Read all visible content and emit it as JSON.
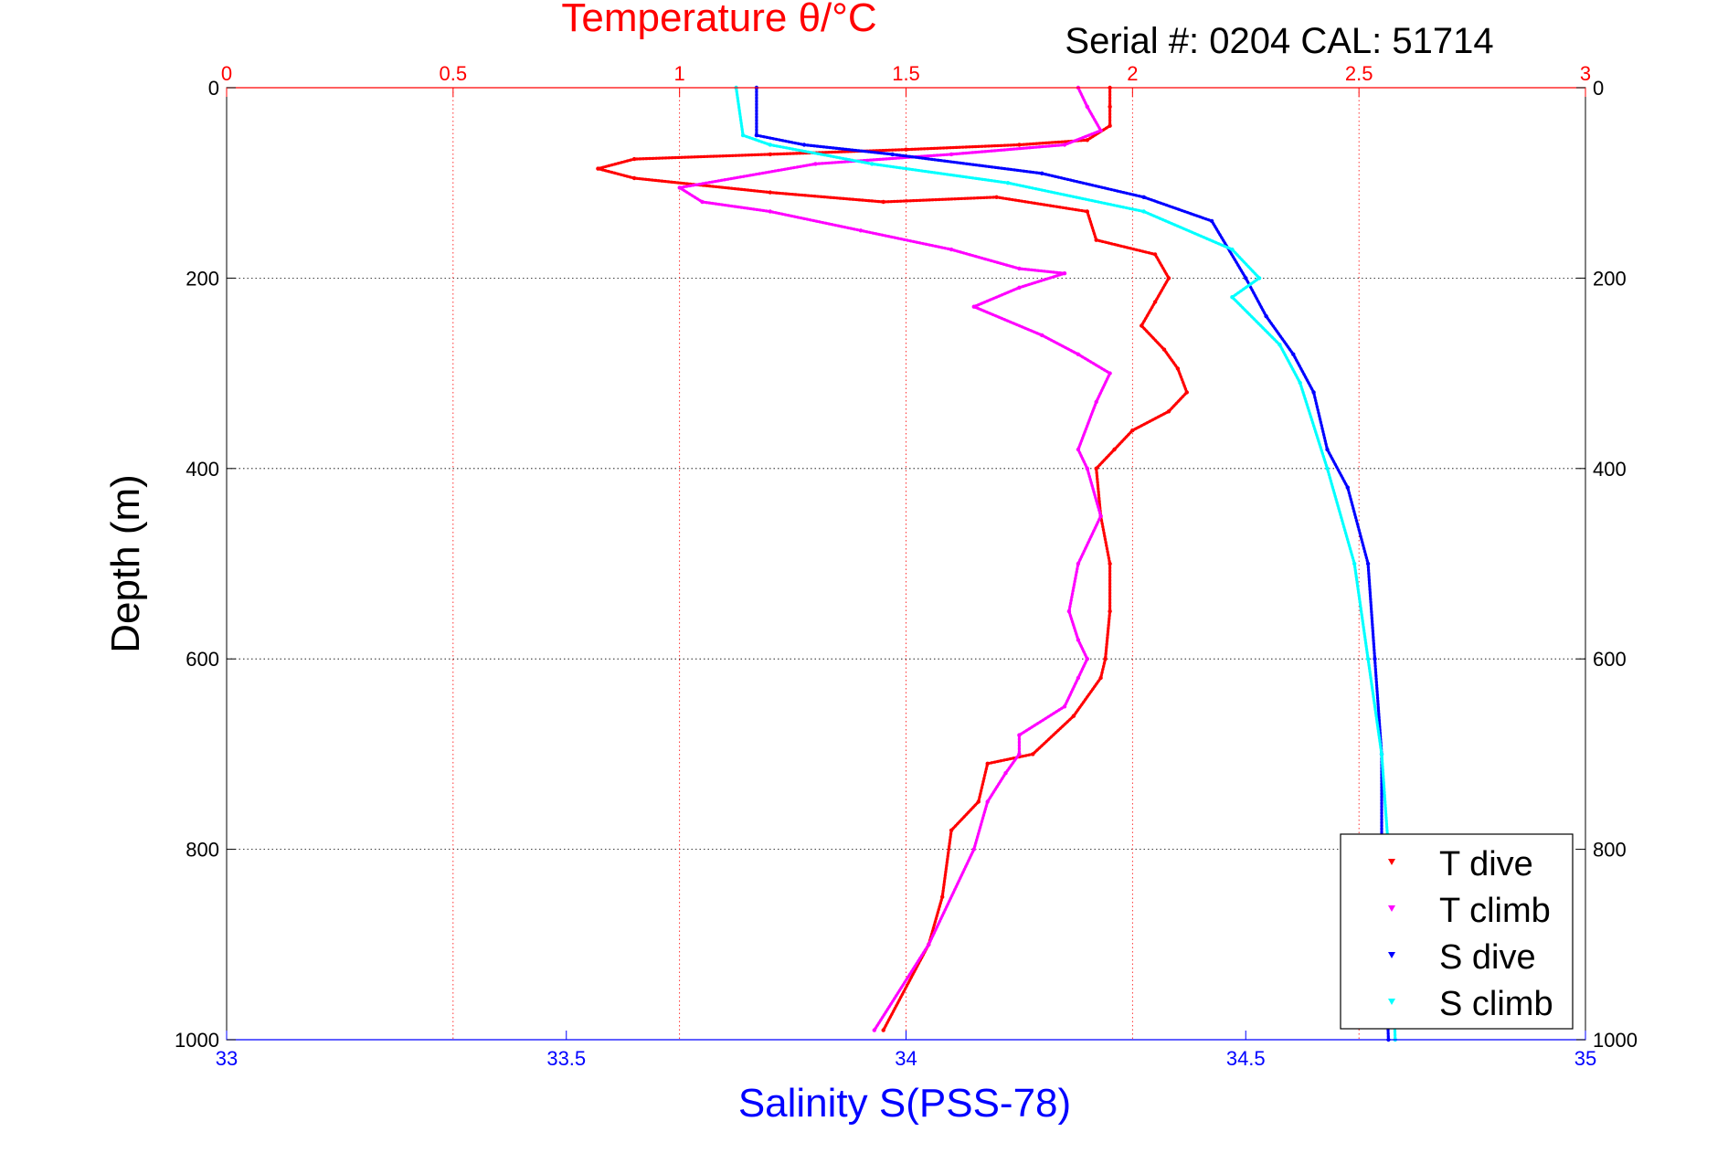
{
  "header": {
    "temp_title": "Temperature θ/°C",
    "serial": "Serial #: 0204  CAL: 51714"
  },
  "chart_data": {
    "type": "scatter",
    "ylabel": "Depth (m)",
    "xlabel_bottom": "Salinity S(PSS-78)",
    "xlabel_top": "Temperature θ/°C",
    "ylim": [
      0,
      1000
    ],
    "y_reversed": true,
    "xlim_bottom": [
      33,
      35
    ],
    "xlim_top": [
      0,
      3
    ],
    "yticks": [
      "0",
      "200",
      "400",
      "600",
      "800",
      "1000"
    ],
    "xticks_bottom": [
      "33",
      "33.5",
      "34",
      "34.5",
      "35"
    ],
    "xticks_top": [
      "0",
      "0.5",
      "1",
      "1.5",
      "2",
      "2.5",
      "3"
    ],
    "grid": true,
    "legend_position": "bottom-right",
    "series": [
      {
        "name": "T dive",
        "axis": "top",
        "color": "#ff0000",
        "x": [
          1.95,
          1.95,
          1.95,
          1.9,
          1.75,
          1.5,
          1.2,
          0.9,
          0.82,
          0.9,
          1.2,
          1.45,
          1.7,
          1.9,
          1.92,
          2.05,
          2.08,
          2.05,
          2.02,
          2.07,
          2.1,
          2.12,
          2.08,
          2.0,
          1.96,
          1.92,
          1.93,
          1.95,
          1.95,
          1.94,
          1.93,
          1.87,
          1.78,
          1.68,
          1.66,
          1.6,
          1.58,
          1.55,
          1.45
        ],
        "y": [
          0,
          20,
          40,
          55,
          60,
          65,
          70,
          75,
          85,
          95,
          110,
          120,
          115,
          130,
          160,
          175,
          200,
          225,
          250,
          275,
          295,
          320,
          340,
          360,
          380,
          400,
          450,
          500,
          550,
          600,
          620,
          660,
          700,
          710,
          750,
          780,
          850,
          900,
          990
        ]
      },
      {
        "name": "T climb",
        "axis": "top",
        "color": "#ff00ff",
        "x": [
          1.88,
          1.9,
          1.93,
          1.85,
          1.6,
          1.3,
          1.0,
          1.05,
          1.2,
          1.4,
          1.6,
          1.75,
          1.85,
          1.75,
          1.65,
          1.8,
          1.88,
          1.95,
          1.92,
          1.88,
          1.9,
          1.93,
          1.88,
          1.86,
          1.88,
          1.9,
          1.88,
          1.85,
          1.75,
          1.75,
          1.72,
          1.68,
          1.65,
          1.55,
          1.43
        ],
        "y": [
          0,
          20,
          45,
          60,
          70,
          80,
          105,
          120,
          130,
          150,
          170,
          190,
          195,
          210,
          230,
          260,
          280,
          300,
          330,
          380,
          400,
          450,
          500,
          550,
          580,
          600,
          620,
          650,
          680,
          700,
          720,
          750,
          800,
          900,
          990
        ]
      },
      {
        "name": "S dive",
        "axis": "bottom",
        "color": "#0000ff",
        "x": [
          33.78,
          33.78,
          33.85,
          33.98,
          34.2,
          34.35,
          34.45,
          34.5,
          34.53,
          34.57,
          34.6,
          34.62,
          34.65,
          34.68,
          34.69,
          34.7,
          34.7,
          34.71
        ],
        "y": [
          0,
          50,
          60,
          70,
          90,
          115,
          140,
          200,
          240,
          280,
          320,
          380,
          420,
          500,
          600,
          700,
          800,
          1000
        ]
      },
      {
        "name": "S climb",
        "axis": "bottom",
        "color": "#00ffff",
        "x": [
          33.75,
          33.76,
          33.8,
          33.95,
          34.15,
          34.35,
          34.48,
          34.52,
          34.48,
          34.55,
          34.58,
          34.62,
          34.66,
          34.68,
          34.7,
          34.71,
          34.72
        ],
        "y": [
          0,
          50,
          60,
          80,
          100,
          130,
          170,
          200,
          220,
          270,
          310,
          400,
          500,
          600,
          700,
          800,
          1000
        ]
      }
    ]
  }
}
